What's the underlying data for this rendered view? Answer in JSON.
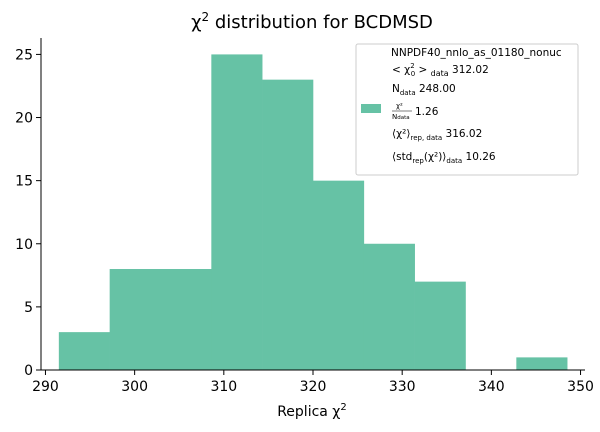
{
  "chart_data": {
    "type": "histogram",
    "title_base": "χ",
    "title_sup": "2",
    "title_rest": " distribution for BCDMSD",
    "xlabel_base": "Replica χ",
    "xlabel_sup": "2",
    "ylabel": "",
    "xlim": [
      289.5,
      350.5
    ],
    "ylim": [
      0,
      26.3
    ],
    "xticks": [
      290,
      300,
      310,
      320,
      330,
      340,
      350
    ],
    "yticks": [
      0,
      5,
      10,
      15,
      20,
      25
    ],
    "bar_color": "#66c2a5",
    "bins": [
      {
        "x0": 291.5,
        "x1": 297.2,
        "count": 3
      },
      {
        "x0": 297.2,
        "x1": 302.9,
        "count": 8
      },
      {
        "x0": 302.9,
        "x1": 308.6,
        "count": 8
      },
      {
        "x0": 308.6,
        "x1": 314.3,
        "count": 25
      },
      {
        "x0": 314.3,
        "x1": 320.0,
        "count": 23
      },
      {
        "x0": 320.0,
        "x1": 325.7,
        "count": 15
      },
      {
        "x0": 325.7,
        "x1": 331.4,
        "count": 10
      },
      {
        "x0": 331.4,
        "x1": 337.1,
        "count": 7
      },
      {
        "x0": 337.1,
        "x1": 342.8,
        "count": 0
      },
      {
        "x0": 342.8,
        "x1": 348.5,
        "count": 1
      }
    ],
    "legend": {
      "placement": "top-right",
      "label": "NNPDF40_nnlo_as_01180_nonuc",
      "chi2_label": "χ",
      "chi2_sub": "0",
      "chi2_sup": "2",
      "chi2_data_sub": "data",
      "chi2_value": "312.02",
      "ndata_label": "N",
      "ndata_sub": "data",
      "ndata_value": "248.00",
      "ratio_num": "χ²",
      "ratio_den": "N",
      "ratio_den_sub": "data",
      "ratio_value": "1.26",
      "rep_label": "⟨χ²⟩",
      "rep_sub": "rep, data",
      "rep_value": "316.02",
      "std_label_1": "⟨std",
      "std_sub_1": "rep",
      "std_label_2": "(χ²)⟩",
      "std_sub_2": "data",
      "std_value": "10.26"
    }
  }
}
